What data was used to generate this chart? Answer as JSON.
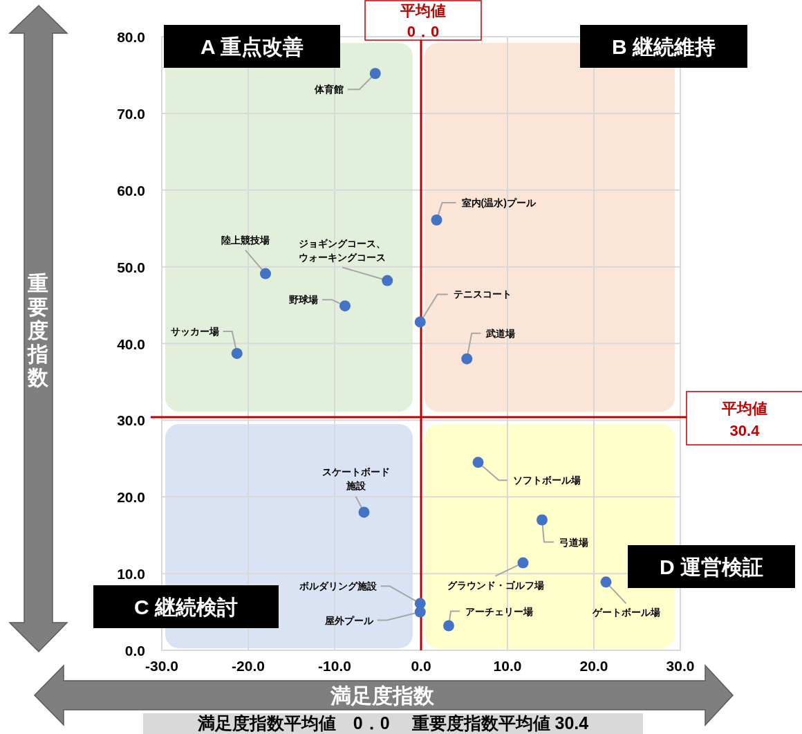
{
  "chart_data": {
    "type": "scatter",
    "xlabel": "満足度指数",
    "ylabel": "重要度指数",
    "xlim": [
      -30,
      30
    ],
    "ylim": [
      0,
      80
    ],
    "xticks": [
      {
        "value": -30,
        "label": "-30.0"
      },
      {
        "value": -20,
        "label": "-20.0"
      },
      {
        "value": -10,
        "label": "-10.0"
      },
      {
        "value": 0,
        "label": "0.0"
      },
      {
        "value": 10,
        "label": "10.0"
      },
      {
        "value": 20,
        "label": "20.0"
      },
      {
        "value": 30,
        "label": "30.0"
      }
    ],
    "yticks": [
      {
        "value": 0,
        "label": "0.0"
      },
      {
        "value": 10,
        "label": "10.0"
      },
      {
        "value": 20,
        "label": "20.0"
      },
      {
        "value": 30,
        "label": "30.0"
      },
      {
        "value": 40,
        "label": "40.0"
      },
      {
        "value": 50,
        "label": "50.0"
      },
      {
        "value": 60,
        "label": "60.0"
      },
      {
        "value": 70,
        "label": "70.0"
      },
      {
        "value": 80,
        "label": "80.0"
      }
    ],
    "grid": true,
    "marker": "circle",
    "series": [
      {
        "name": "体育館",
        "color": "#4472c4",
        "x": [
          -5.3
        ],
        "values": [
          75.2
        ]
      },
      {
        "name": "室内(温水)プール",
        "color": "#4472c4",
        "x": [
          1.8
        ],
        "values": [
          56.1
        ]
      },
      {
        "name": "陸上競技場",
        "color": "#4472c4",
        "x": [
          -18.0
        ],
        "values": [
          49.1
        ]
      },
      {
        "name": "ジョギングコース、ウォーキングコース",
        "color": "#4472c4",
        "x": [
          -3.9
        ],
        "values": [
          48.2
        ]
      },
      {
        "name": "野球場",
        "color": "#4472c4",
        "x": [
          -8.8
        ],
        "values": [
          44.9
        ]
      },
      {
        "name": "テニスコート",
        "color": "#4472c4",
        "x": [
          -0.1
        ],
        "values": [
          42.8
        ]
      },
      {
        "name": "武道場",
        "color": "#4472c4",
        "x": [
          5.3
        ],
        "values": [
          38.0
        ]
      },
      {
        "name": "サッカー場",
        "color": "#4472c4",
        "x": [
          -21.3
        ],
        "values": [
          38.7
        ]
      },
      {
        "name": "ソフトボール場",
        "color": "#4472c4",
        "x": [
          6.6
        ],
        "values": [
          24.5
        ]
      },
      {
        "name": "スケートボード施設",
        "color": "#4472c4",
        "x": [
          -6.6
        ],
        "values": [
          18.0
        ]
      },
      {
        "name": "弓道場",
        "color": "#4472c4",
        "x": [
          14.0
        ],
        "values": [
          17.0
        ]
      },
      {
        "name": "グラウンド・ゴルフ場",
        "color": "#4472c4",
        "x": [
          11.8
        ],
        "values": [
          11.4
        ]
      },
      {
        "name": "ゲートボール場",
        "color": "#4472c4",
        "x": [
          21.4
        ],
        "values": [
          8.9
        ]
      },
      {
        "name": "ボルダリング施設",
        "color": "#4472c4",
        "x": [
          -0.1
        ],
        "values": [
          6.1
        ]
      },
      {
        "name": "屋外プール",
        "color": "#4472c4",
        "x": [
          -0.1
        ],
        "values": [
          5.0
        ]
      },
      {
        "name": "アーチェリー場",
        "color": "#4472c4",
        "x": [
          3.2
        ],
        "values": [
          3.2
        ]
      }
    ],
    "ref_lines": [
      {
        "axis": "x",
        "value": 0,
        "label": "平均値\n0．0",
        "color": "#c00000"
      },
      {
        "axis": "y",
        "value": 30.4,
        "label": "平均値\n30.4",
        "color": "#c00000"
      }
    ],
    "annotations": [
      "A  重点改善",
      "B  継続維持",
      "C  継続検討",
      "D  運営検証",
      "満足度指数平均値　0．0　 重要度指数平均値 30.4"
    ]
  }
}
